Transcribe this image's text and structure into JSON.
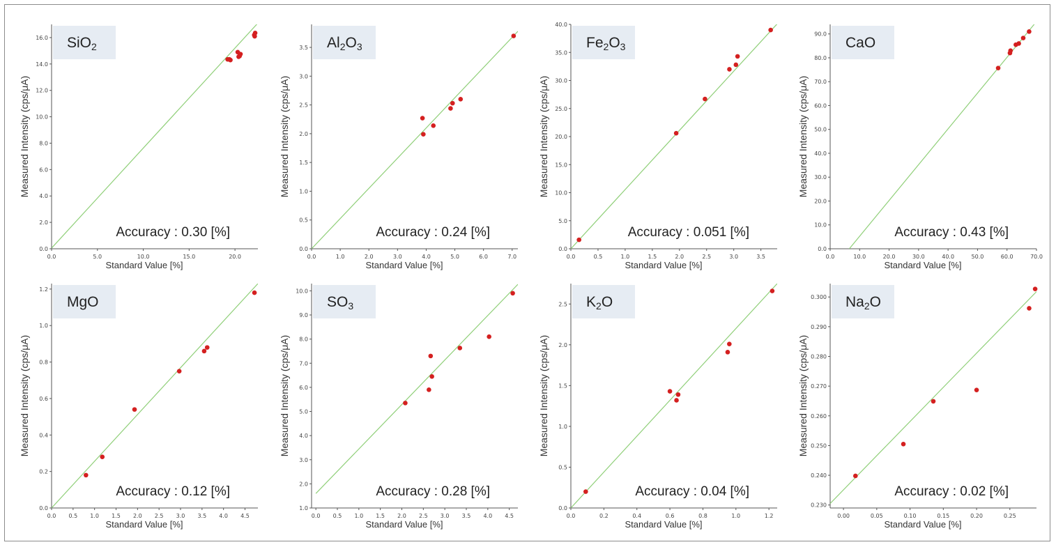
{
  "ylabel": "Measured Intensity (cps/μA)",
  "xlabel": "Standard Value [%]",
  "colors": {
    "point": "#d42020",
    "fit_line": "#8fcf78",
    "title_box": "#e6ecf3",
    "axis": "#555555"
  },
  "chart_data": [
    {
      "type": "scatter",
      "title_parts": [
        {
          "t": "SiO"
        },
        {
          "t": "2",
          "sub": true
        }
      ],
      "accuracy": "Accuracy : 0.30 [%]",
      "xlim": [
        0,
        22.5
      ],
      "ylim": [
        0,
        17
      ],
      "xticks": [
        "0.0",
        "5.0",
        "10.0",
        "15.0",
        "20.0"
      ],
      "xtick_vals": [
        0,
        5,
        10,
        15,
        20
      ],
      "yticks": [
        "0.0",
        "2.0",
        "4.0",
        "6.0",
        "8.0",
        "10.0",
        "12.0",
        "14.0",
        "16.0"
      ],
      "ytick_vals": [
        0,
        2,
        4,
        6,
        8,
        10,
        12,
        14,
        16
      ],
      "fit": [
        [
          0,
          0.05
        ],
        [
          22.5,
          17.1
        ]
      ],
      "points": [
        [
          19.2,
          14.35
        ],
        [
          19.4,
          14.35
        ],
        [
          19.5,
          14.3
        ],
        [
          20.3,
          14.9
        ],
        [
          20.4,
          14.55
        ],
        [
          20.5,
          14.6
        ],
        [
          20.6,
          14.75
        ],
        [
          22.1,
          16.2
        ],
        [
          22.2,
          16.35
        ],
        [
          22.15,
          16.1
        ]
      ]
    },
    {
      "type": "scatter",
      "title_parts": [
        {
          "t": "Al"
        },
        {
          "t": "2",
          "sub": true
        },
        {
          "t": "O"
        },
        {
          "t": "3",
          "sub": true
        }
      ],
      "accuracy": "Accuracy : 0.24 [%]",
      "xlim": [
        0,
        7.2
      ],
      "ylim": [
        0,
        3.9
      ],
      "xticks": [
        "0.0",
        "1.0",
        "2.0",
        "3.0",
        "4.0",
        "5.0",
        "6.0",
        "7.0"
      ],
      "xtick_vals": [
        0,
        1,
        2,
        3,
        4,
        5,
        6,
        7
      ],
      "yticks": [
        "0.0",
        "0.5",
        "1.0",
        "1.5",
        "2.0",
        "2.5",
        "3.0",
        "3.5"
      ],
      "ytick_vals": [
        0,
        0.5,
        1,
        1.5,
        2,
        2.5,
        3,
        3.5
      ],
      "fit": [
        [
          0,
          0
        ],
        [
          7.2,
          3.78
        ]
      ],
      "points": [
        [
          3.87,
          2.27
        ],
        [
          3.9,
          1.99
        ],
        [
          4.25,
          2.14
        ],
        [
          4.85,
          2.44
        ],
        [
          4.92,
          2.53
        ],
        [
          5.2,
          2.6
        ],
        [
          7.05,
          3.7
        ]
      ]
    },
    {
      "type": "scatter",
      "title_parts": [
        {
          "t": "Fe"
        },
        {
          "t": "2",
          "sub": true
        },
        {
          "t": "O"
        },
        {
          "t": "3",
          "sub": true
        }
      ],
      "accuracy": "Accuracy : 0.051 [%]",
      "xlim": [
        0,
        3.8
      ],
      "ylim": [
        0,
        40
      ],
      "xticks": [
        "0.0",
        "0.5",
        "1.0",
        "1.5",
        "2.0",
        "2.5",
        "3.0",
        "3.5"
      ],
      "xtick_vals": [
        0,
        0.5,
        1,
        1.5,
        2,
        2.5,
        3,
        3.5
      ],
      "yticks": [
        "0.0",
        "5.0",
        "10.0",
        "15.0",
        "20.0",
        "25.0",
        "30.0",
        "35.0",
        "40.0"
      ],
      "ytick_vals": [
        0,
        5,
        10,
        15,
        20,
        25,
        30,
        35,
        40
      ],
      "fit": [
        [
          0,
          0
        ],
        [
          3.8,
          40.1
        ]
      ],
      "points": [
        [
          0.15,
          1.6
        ],
        [
          1.94,
          20.6
        ],
        [
          2.47,
          26.7
        ],
        [
          2.92,
          32.0
        ],
        [
          3.04,
          32.8
        ],
        [
          3.07,
          34.3
        ],
        [
          3.68,
          39.0
        ]
      ]
    },
    {
      "type": "scatter",
      "title_parts": [
        {
          "t": "CaO"
        }
      ],
      "accuracy": "Accuracy : 0.43 [%]",
      "xlim": [
        0,
        70
      ],
      "ylim": [
        0,
        94
      ],
      "xticks": [
        "0.0",
        "10.0",
        "20.0",
        "30.0",
        "40.0",
        "50.0",
        "60.0",
        "70.0"
      ],
      "xtick_vals": [
        0,
        10,
        20,
        30,
        40,
        50,
        60,
        70
      ],
      "yticks": [
        "0.0",
        "10.0",
        "20.0",
        "30.0",
        "40.0",
        "50.0",
        "60.0",
        "70.0",
        "80.0",
        "90.0"
      ],
      "ytick_vals": [
        0,
        10,
        20,
        30,
        40,
        50,
        60,
        70,
        80,
        90
      ],
      "fit": [
        [
          6.5,
          0
        ],
        [
          70,
          95.2
        ]
      ],
      "points": [
        [
          57,
          75.7
        ],
        [
          61,
          82
        ],
        [
          61.2,
          83
        ],
        [
          63,
          85.5
        ],
        [
          64,
          86
        ],
        [
          65.5,
          88.3
        ],
        [
          67.5,
          91
        ]
      ]
    },
    {
      "type": "scatter",
      "title_parts": [
        {
          "t": "MgO"
        }
      ],
      "accuracy": "Accuracy : 0.12 [%]",
      "xlim": [
        0,
        4.8
      ],
      "ylim": [
        0,
        1.23
      ],
      "xticks": [
        "0.0",
        "0.5",
        "1.0",
        "1.5",
        "2.0",
        "2.5",
        "3.0",
        "3.5",
        "4.0",
        "4.5"
      ],
      "xtick_vals": [
        0,
        0.5,
        1,
        1.5,
        2,
        2.5,
        3,
        3.5,
        4,
        4.5
      ],
      "yticks": [
        "0.0",
        "0.2",
        "0.4",
        "0.6",
        "0.8",
        "1.0",
        "1.2"
      ],
      "ytick_vals": [
        0,
        0.2,
        0.4,
        0.6,
        0.8,
        1.0,
        1.2
      ],
      "fit": [
        [
          0,
          0
        ],
        [
          4.8,
          1.23
        ]
      ],
      "points": [
        [
          0.8,
          0.18
        ],
        [
          1.18,
          0.28
        ],
        [
          1.93,
          0.54
        ],
        [
          2.97,
          0.75
        ],
        [
          3.55,
          0.86
        ],
        [
          3.62,
          0.88
        ],
        [
          4.72,
          1.18
        ]
      ]
    },
    {
      "type": "scatter",
      "title_parts": [
        {
          "t": "SO"
        },
        {
          "t": "3",
          "sub": true
        }
      ],
      "accuracy": "Accuracy : 0.28 [%]",
      "xlim": [
        -0.1,
        4.7
      ],
      "ylim": [
        1,
        10.3
      ],
      "xticks": [
        "0.0",
        "0.5",
        "1.0",
        "1.5",
        "2.0",
        "2.5",
        "3.0",
        "3.5",
        "4.0",
        "4.5"
      ],
      "xtick_vals": [
        0,
        0.5,
        1,
        1.5,
        2,
        2.5,
        3,
        3.5,
        4,
        4.5
      ],
      "yticks": [
        "1.0",
        "2.0",
        "3.0",
        "4.0",
        "5.0",
        "6.0",
        "7.0",
        "8.0",
        "9.0",
        "10.0"
      ],
      "ytick_vals": [
        1,
        2,
        3,
        4,
        5,
        6,
        7,
        8,
        9,
        10
      ],
      "fit": [
        [
          0,
          1.6
        ],
        [
          4.7,
          10.27
        ]
      ],
      "points": [
        [
          2.08,
          5.35
        ],
        [
          2.63,
          5.9
        ],
        [
          2.67,
          7.3
        ],
        [
          2.7,
          6.45
        ],
        [
          3.35,
          7.63
        ],
        [
          4.03,
          8.1
        ],
        [
          4.58,
          9.9
        ]
      ]
    },
    {
      "type": "scatter",
      "title_parts": [
        {
          "t": "K"
        },
        {
          "t": "2",
          "sub": true
        },
        {
          "t": "O"
        }
      ],
      "accuracy": "Accuracy : 0.04 [%]",
      "xlim": [
        0,
        1.25
      ],
      "ylim": [
        0,
        2.75
      ],
      "xticks": [
        "0.0",
        "0.2",
        "0.4",
        "0.6",
        "0.8",
        "1.0",
        "1.2"
      ],
      "xtick_vals": [
        0,
        0.2,
        0.4,
        0.6,
        0.8,
        1.0,
        1.2
      ],
      "yticks": [
        "0.0",
        "0.5",
        "1.0",
        "1.5",
        "2.0",
        "2.5"
      ],
      "ytick_vals": [
        0,
        0.5,
        1.0,
        1.5,
        2.0,
        2.5
      ],
      "fit": [
        [
          0,
          0
        ],
        [
          1.25,
          2.75
        ]
      ],
      "points": [
        [
          0.09,
          0.2
        ],
        [
          0.6,
          1.43
        ],
        [
          0.64,
          1.32
        ],
        [
          0.65,
          1.39
        ],
        [
          0.95,
          1.91
        ],
        [
          0.96,
          2.01
        ],
        [
          1.22,
          2.66
        ]
      ]
    },
    {
      "type": "scatter",
      "title_parts": [
        {
          "t": "Na"
        },
        {
          "t": "2",
          "sub": true
        },
        {
          "t": "O"
        }
      ],
      "accuracy": "Accuracy : 0.02 [%]",
      "xlim": [
        -0.02,
        0.29
      ],
      "ylim": [
        0.229,
        0.3045
      ],
      "xticks": [
        "0.00",
        "0.05",
        "0.10",
        "0.15",
        "0.20",
        "0.25"
      ],
      "xtick_vals": [
        0,
        0.05,
        0.1,
        0.15,
        0.2,
        0.25
      ],
      "yticks": [
        "0.230",
        "0.240",
        "0.250",
        "0.260",
        "0.270",
        "0.280",
        "0.290",
        "0.300"
      ],
      "ytick_vals": [
        0.23,
        0.24,
        0.25,
        0.26,
        0.27,
        0.28,
        0.29,
        0.3
      ],
      "fit": [
        [
          -0.02,
          0.2305
        ],
        [
          0.29,
          0.3018
        ]
      ],
      "points": [
        [
          0.018,
          0.2398
        ],
        [
          0.09,
          0.2505
        ],
        [
          0.135,
          0.2649
        ],
        [
          0.2,
          0.2687
        ],
        [
          0.279,
          0.2962
        ],
        [
          0.288,
          0.3027
        ]
      ]
    }
  ]
}
